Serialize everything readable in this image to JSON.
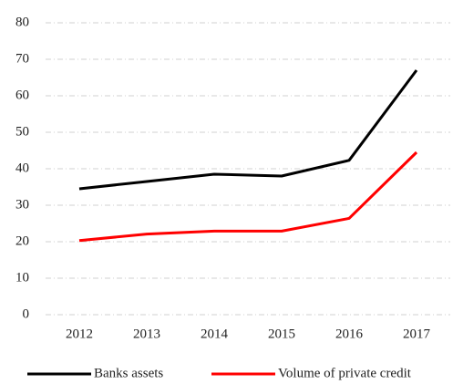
{
  "chart_data": {
    "type": "line",
    "categories": [
      "2012",
      "2013",
      "2014",
      "2015",
      "2016",
      "2017"
    ],
    "series": [
      {
        "name": "Banks assets",
        "color": "#000000",
        "values": [
          34.5,
          36.5,
          38.5,
          38,
          42.3,
          67
        ]
      },
      {
        "name": "Volume of private credit",
        "color": "#ff0000",
        "values": [
          20.3,
          22.1,
          22.9,
          22.9,
          26.4,
          44.5
        ]
      }
    ],
    "ylim": [
      0,
      80
    ],
    "yticks": [
      0,
      10,
      20,
      30,
      40,
      50,
      60,
      70,
      80
    ],
    "grid": true,
    "legend": "bottom"
  }
}
